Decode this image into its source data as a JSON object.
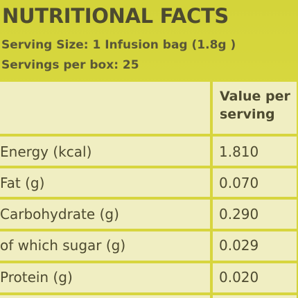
{
  "facts": {
    "title": "NUTRITIONAL FACTS",
    "serving_size": "Serving Size: 1 Infusion bag (1.8g )",
    "servings_per_box": "Servings per box: 25"
  },
  "table": {
    "column_header": "Value per serving",
    "rows": [
      {
        "label": "Energy (kcal)",
        "value": "1.810"
      },
      {
        "label": "Fat (g)",
        "value": "0.070"
      },
      {
        "label": "Carbohydrate (g)",
        "value": "0.290"
      },
      {
        "label": "of which sugar (g)",
        "value": "0.029"
      },
      {
        "label": "Protein (g)",
        "value": "0.020"
      }
    ]
  },
  "colors": {
    "label_yellow": "#d9d83a",
    "table_cream": "#f0eec2",
    "text": "#4d4a30"
  }
}
